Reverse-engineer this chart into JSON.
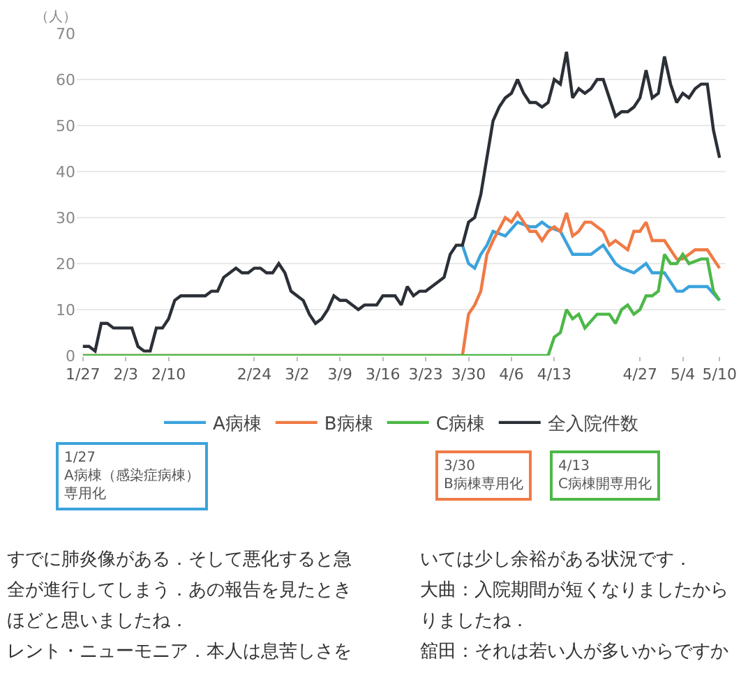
{
  "chart_data": {
    "type": "line",
    "ylabel": "（人）",
    "xlim": [
      "--01-26",
      "--05-11"
    ],
    "ylim": [
      0,
      70
    ],
    "yticks": [
      0,
      10,
      20,
      30,
      40,
      50,
      60,
      70
    ],
    "xticks": [
      {
        "value": "--01-27",
        "label": "1/27"
      },
      {
        "value": "--02-03",
        "label": "2/3"
      },
      {
        "value": "--02-10",
        "label": "2/10"
      },
      {
        "value": "--02-24",
        "label": "2/24"
      },
      {
        "value": "--03-02",
        "label": "3/2"
      },
      {
        "value": "--03-09",
        "label": "3/9"
      },
      {
        "value": "--03-16",
        "label": "3/16"
      },
      {
        "value": "--03-23",
        "label": "3/23"
      },
      {
        "value": "--03-30",
        "label": "3/30"
      },
      {
        "value": "--04-06",
        "label": "4/6"
      },
      {
        "value": "--04-13",
        "label": "4/13"
      },
      {
        "value": "--04-27",
        "label": "4/27"
      },
      {
        "value": "--05-04",
        "label": "5/4"
      },
      {
        "value": "--05-10",
        "label": "5/10"
      }
    ],
    "grid": "y",
    "legend": "bottom",
    "marker": "none",
    "line_style": "solid",
    "series": [
      {
        "name": "A病棟",
        "color": "#3ba3dc",
        "x": [
          "--03-29",
          "--03-30",
          "--03-31",
          "--04-01",
          "--04-02",
          "--04-03",
          "--04-05",
          "--04-07",
          "--04-09",
          "--04-10",
          "--04-11",
          "--04-12",
          "--04-14",
          "--04-16",
          "--04-19",
          "--04-21",
          "--04-23",
          "--04-24",
          "--04-26",
          "--04-28",
          "--04-29",
          "--05-01",
          "--05-03",
          "--05-04",
          "--05-05",
          "--05-08",
          "--05-10"
        ],
        "values": [
          24,
          20,
          19,
          22,
          24,
          27,
          26,
          29,
          28,
          28,
          29,
          28,
          27,
          22,
          22,
          24,
          20,
          19,
          18,
          20,
          18,
          18,
          14,
          14,
          15,
          15,
          12
        ]
      },
      {
        "name": "B病棟",
        "color": "#f07a45",
        "x": [
          "--01-27",
          "--03-29",
          "--03-30",
          "--03-31",
          "--04-01",
          "--04-02",
          "--04-03",
          "--04-05",
          "--04-06",
          "--04-07",
          "--04-08",
          "--04-09",
          "--04-10",
          "--04-11",
          "--04-12",
          "--04-13",
          "--04-14",
          "--04-15",
          "--04-16",
          "--04-17",
          "--04-18",
          "--04-19",
          "--04-20",
          "--04-21",
          "--04-22",
          "--04-23",
          "--04-25",
          "--04-26",
          "--04-27",
          "--04-28",
          "--04-29",
          "--05-01",
          "--05-03",
          "--05-04",
          "--05-06",
          "--05-08",
          "--05-10"
        ],
        "values": [
          0,
          0,
          9,
          11,
          14,
          22,
          25,
          30,
          29,
          31,
          29,
          27,
          27,
          25,
          27,
          28,
          27,
          31,
          26,
          27,
          29,
          29,
          28,
          27,
          24,
          25,
          23,
          27,
          27,
          29,
          25,
          25,
          21,
          21,
          23,
          23,
          19
        ]
      },
      {
        "name": "C病棟",
        "color": "#4db848",
        "x": [
          "--01-27",
          "--04-12",
          "--04-13",
          "--04-14",
          "--04-15",
          "--04-16",
          "--04-17",
          "--04-18",
          "--04-20",
          "--04-22",
          "--04-23",
          "--04-24",
          "--04-25",
          "--04-26",
          "--04-27",
          "--04-28",
          "--04-29",
          "--04-30",
          "--05-01",
          "--05-02",
          "--05-03",
          "--05-04",
          "--05-05",
          "--05-07",
          "--05-08",
          "--05-09",
          "--05-10"
        ],
        "values": [
          0,
          0,
          4,
          5,
          10,
          8,
          9,
          6,
          9,
          9,
          7,
          10,
          11,
          9,
          10,
          13,
          13,
          14,
          22,
          20,
          20,
          22,
          20,
          21,
          21,
          14,
          12
        ]
      },
      {
        "name": "全入院件数",
        "color": "#2b2f36",
        "x": [
          "--01-27",
          "--01-28",
          "--01-29",
          "--01-30",
          "--01-31",
          "--02-01",
          "--02-04",
          "--02-05",
          "--02-06",
          "--02-07",
          "--02-08",
          "--02-09",
          "--02-10",
          "--02-11",
          "--02-12",
          "--02-16",
          "--02-17",
          "--02-18",
          "--02-19",
          "--02-20",
          "--02-21",
          "--02-22",
          "--02-23",
          "--02-24",
          "--02-25",
          "--02-26",
          "--02-27",
          "--02-28",
          "--02-29",
          "--03-01",
          "--03-02",
          "--03-03",
          "--03-04",
          "--03-05",
          "--03-06",
          "--03-07",
          "--03-08",
          "--03-09",
          "--03-10",
          "--03-12",
          "--03-13",
          "--03-15",
          "--03-16",
          "--03-18",
          "--03-19",
          "--03-20",
          "--03-21",
          "--03-22",
          "--03-23",
          "--03-24",
          "--03-26",
          "--03-27",
          "--03-28",
          "--03-29",
          "--03-30",
          "--03-31",
          "--04-01",
          "--04-03",
          "--04-04",
          "--04-05",
          "--04-06",
          "--04-07",
          "--04-08",
          "--04-09",
          "--04-10",
          "--04-11",
          "--04-12",
          "--04-13",
          "--04-14",
          "--04-15",
          "--04-16",
          "--04-17",
          "--04-18",
          "--04-19",
          "--04-20",
          "--04-21",
          "--04-23",
          "--04-24",
          "--04-25",
          "--04-26",
          "--04-27",
          "--04-28",
          "--04-29",
          "--04-30",
          "--05-01",
          "--05-02",
          "--05-03",
          "--05-04",
          "--05-05",
          "--05-06",
          "--05-07",
          "--05-08",
          "--05-09",
          "--05-10"
        ],
        "values": [
          2,
          2,
          1,
          7,
          7,
          6,
          6,
          2,
          1,
          1,
          6,
          6,
          8,
          12,
          13,
          13,
          14,
          14,
          17,
          18,
          19,
          18,
          18,
          19,
          19,
          18,
          18,
          20,
          18,
          14,
          13,
          12,
          9,
          7,
          8,
          10,
          13,
          12,
          12,
          10,
          11,
          11,
          13,
          13,
          11,
          15,
          13,
          14,
          14,
          15,
          17,
          22,
          24,
          24,
          29,
          30,
          35,
          51,
          54,
          56,
          57,
          60,
          57,
          55,
          55,
          54,
          55,
          60,
          59,
          66,
          56,
          58,
          57,
          58,
          60,
          60,
          52,
          53,
          53,
          54,
          56,
          62,
          56,
          57,
          65,
          59,
          55,
          57,
          56,
          58,
          59,
          59,
          49,
          43
        ]
      }
    ],
    "annotations": [
      "1/27\nA病棟（感染症病棟）専用化",
      "3/30\nB病棟専用化",
      "4/13\nC病棟開専用化",
      "すでに肺炎像がある．そして悪化すると急",
      "全が進行してしまう．あの報告を見たとき",
      "ほどと思いましたね．",
      "レント・ニューモニア．本人は息苦しさを",
      "いては少し余裕がある状況です．",
      "大曲：入院期間が短くなりましたから",
      "りましたね．",
      "舘田：それは若い人が多いからですか"
    ]
  }
}
